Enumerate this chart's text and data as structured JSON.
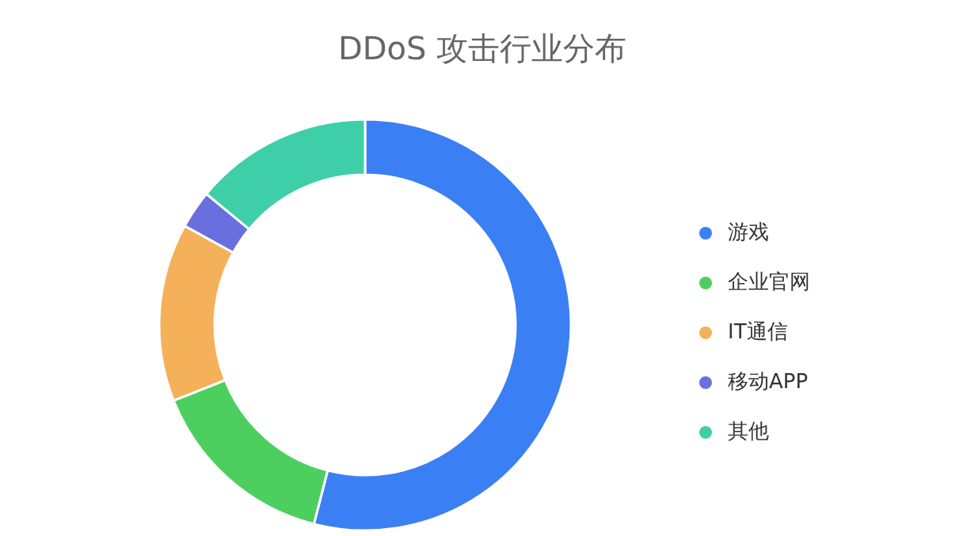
{
  "chart_data": {
    "type": "donut",
    "title": "DDoS 攻击行业分布",
    "categories": [
      "游戏",
      "企业官网",
      "IT通信",
      "移动APP",
      "其他"
    ],
    "values": [
      54,
      15,
      14,
      3,
      14
    ],
    "colors": [
      "#3b7ff5",
      "#4ccf5f",
      "#f5b05a",
      "#6a6fe0",
      "#3ecfa8"
    ],
    "legend": "right"
  }
}
